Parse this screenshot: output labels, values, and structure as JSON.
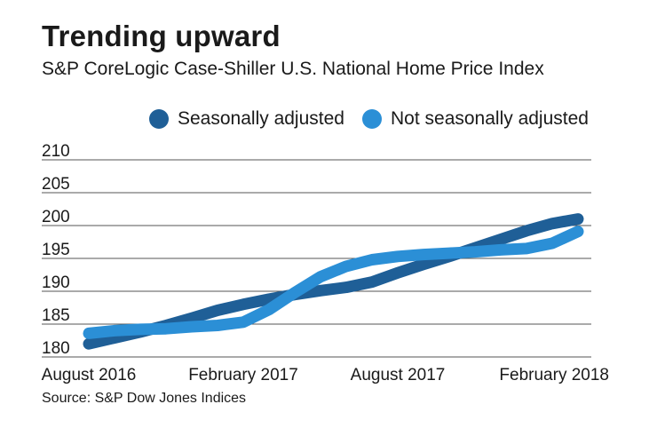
{
  "header": {
    "title": "Trending upward",
    "subtitle": "S&P CoreLogic Case-Shiller U.S. National Home Price Index"
  },
  "legend": {
    "items": [
      {
        "label": "Seasonally adjusted",
        "color": "#1f5f97"
      },
      {
        "label": "Not seasonally adjusted",
        "color": "#2b8fd6"
      }
    ]
  },
  "source": "Source: S&P Dow Jones Indices",
  "chart_data": {
    "type": "line",
    "title": "Trending upward",
    "subtitle": "S&P CoreLogic Case-Shiller U.S. National Home Price Index",
    "x_index": [
      0,
      1,
      2,
      3,
      4,
      5,
      6,
      7,
      8,
      9,
      10,
      11,
      12,
      13,
      14,
      15,
      16,
      17,
      18,
      19
    ],
    "x_tick_labels": [
      {
        "index": 0,
        "label": "August 2016"
      },
      {
        "index": 6,
        "label": "February 2017"
      },
      {
        "index": 12,
        "label": "August 2017"
      },
      {
        "index": 18,
        "label": "February 2018"
      }
    ],
    "ylim": [
      180,
      210
    ],
    "y_ticks": [
      180,
      185,
      190,
      195,
      200,
      205,
      210
    ],
    "grid": true,
    "legend_position": "top-right",
    "series": [
      {
        "name": "Seasonally adjusted",
        "color": "#1f5f97",
        "values": [
          182.0,
          182.9,
          183.8,
          184.8,
          185.9,
          187.1,
          188.0,
          188.8,
          189.5,
          190.1,
          190.6,
          191.4,
          192.8,
          194.1,
          195.3,
          196.6,
          197.9,
          199.2,
          200.3,
          201.0
        ]
      },
      {
        "name": "Not seasonally adjusted",
        "color": "#2b8fd6",
        "values": [
          183.6,
          184.0,
          184.2,
          184.3,
          184.6,
          184.8,
          185.3,
          187.2,
          189.8,
          192.2,
          193.8,
          194.8,
          195.3,
          195.6,
          195.8,
          196.0,
          196.3,
          196.5,
          197.3,
          199.1
        ]
      }
    ]
  }
}
